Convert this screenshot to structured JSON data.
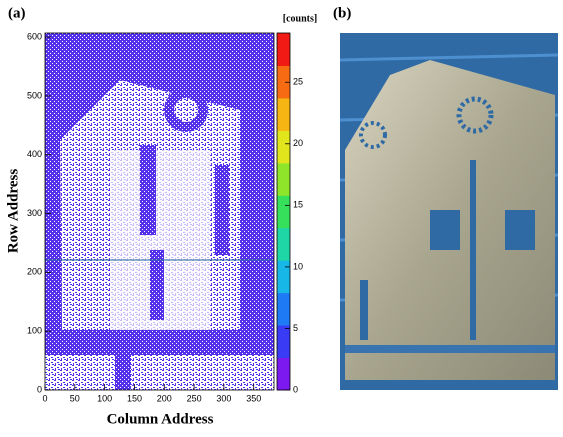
{
  "chart_data": {
    "type": "heatmap",
    "panel_labels": [
      "(a)",
      "(b)"
    ],
    "xlabel": "Column Address",
    "ylabel": "Row Address",
    "colorbar_label": "[counts]",
    "xlim": [
      0,
      384
    ],
    "xticks": [
      0,
      50,
      100,
      150,
      200,
      250,
      300,
      350
    ],
    "ylim": [
      0,
      607
    ],
    "yticks": [
      0,
      100,
      200,
      300,
      400,
      500,
      600
    ],
    "zlim": [
      0,
      29
    ],
    "zticks": [
      0,
      5,
      10,
      15,
      20,
      25
    ],
    "colormap": [
      "#7b19f0",
      "#3a3cf5",
      "#1f7af5",
      "#17b8e8",
      "#1ed6a6",
      "#37e05a",
      "#8fe52a",
      "#e0e51c",
      "#f7b514",
      "#f76b12",
      "#f21a14"
    ]
  }
}
